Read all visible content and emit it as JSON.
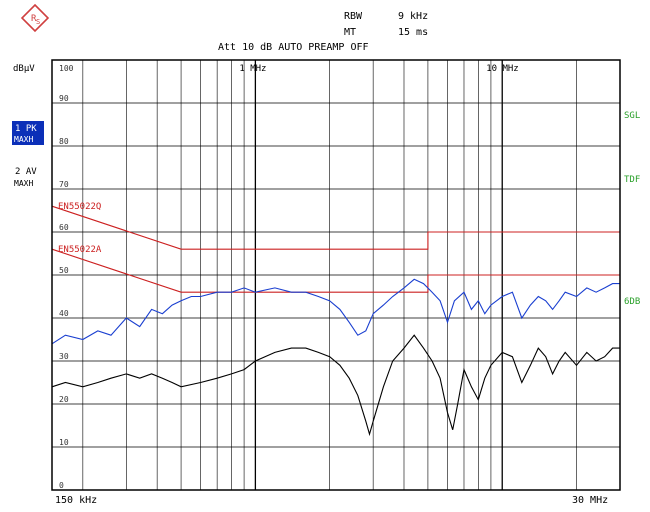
{
  "header": {
    "rbw_label": "RBW",
    "rbw_value": "9 kHz",
    "mt_label": "MT",
    "mt_value": "15 ms",
    "att_line": "Att 10 dB AUTO PREAMP OFF"
  },
  "left_panel": {
    "unit": "dBµV",
    "trace1_line1": "1 PK",
    "trace1_line2": "MAXH",
    "trace2_line1": "2 AV",
    "trace2_line2": "MAXH"
  },
  "right_panel": {
    "sgl": "SGL",
    "tdf": "TDF",
    "sdb": "6DB"
  },
  "colors": {
    "grid": "#000000",
    "frame": "#000000",
    "limit": "#cc2020",
    "trace_pk": "#1a3fd0",
    "trace_av": "#000000",
    "side_green": "#2aa02a",
    "highlight_bg": "#0b2fb8",
    "logo": "#d04040"
  },
  "chart_data": {
    "type": "line",
    "x_scale": "log",
    "xlim_mhz": [
      0.15,
      30
    ],
    "ylim": [
      0,
      100
    ],
    "y_ticks": [
      0,
      10,
      20,
      30,
      40,
      50,
      60,
      70,
      80,
      90,
      100
    ],
    "y_tick_labels": [
      "0",
      "10",
      "20",
      "30",
      "40",
      "50",
      "60",
      "70",
      "80",
      "90",
      "100"
    ],
    "x_tick_labels": [
      {
        "mhz": 1,
        "label": "1 MHz"
      },
      {
        "mhz": 10,
        "label": "10 MHz"
      }
    ],
    "x_start_label": "150 kHz",
    "x_end_label": "30 MHz",
    "limit_lines": [
      {
        "name": "EN55022Q",
        "points": [
          [
            0.15,
            66
          ],
          [
            0.5,
            56
          ],
          [
            5,
            56
          ],
          [
            5,
            60
          ],
          [
            30,
            60
          ]
        ]
      },
      {
        "name": "EN55022A",
        "points": [
          [
            0.15,
            56
          ],
          [
            0.5,
            46
          ],
          [
            5,
            46
          ],
          [
            5,
            50
          ],
          [
            30,
            50
          ]
        ]
      }
    ],
    "series": [
      {
        "name": "1 PK MAXH",
        "points": [
          [
            0.15,
            34
          ],
          [
            0.17,
            36
          ],
          [
            0.2,
            35
          ],
          [
            0.23,
            37
          ],
          [
            0.26,
            36
          ],
          [
            0.3,
            40
          ],
          [
            0.34,
            38
          ],
          [
            0.38,
            42
          ],
          [
            0.42,
            41
          ],
          [
            0.46,
            43
          ],
          [
            0.5,
            44
          ],
          [
            0.55,
            45
          ],
          [
            0.6,
            45
          ],
          [
            0.7,
            46
          ],
          [
            0.8,
            46
          ],
          [
            0.9,
            47
          ],
          [
            1.0,
            46
          ],
          [
            1.2,
            47
          ],
          [
            1.4,
            46
          ],
          [
            1.6,
            46
          ],
          [
            1.8,
            45
          ],
          [
            2.0,
            44
          ],
          [
            2.2,
            42
          ],
          [
            2.4,
            39
          ],
          [
            2.6,
            36
          ],
          [
            2.8,
            37
          ],
          [
            3.0,
            41
          ],
          [
            3.3,
            43
          ],
          [
            3.6,
            45
          ],
          [
            4.0,
            47
          ],
          [
            4.4,
            49
          ],
          [
            4.8,
            48
          ],
          [
            5.2,
            46
          ],
          [
            5.6,
            44
          ],
          [
            6.0,
            39
          ],
          [
            6.4,
            44
          ],
          [
            7.0,
            46
          ],
          [
            7.5,
            42
          ],
          [
            8.0,
            44
          ],
          [
            8.5,
            41
          ],
          [
            9.0,
            43
          ],
          [
            10,
            45
          ],
          [
            11,
            46
          ],
          [
            12,
            40
          ],
          [
            13,
            43
          ],
          [
            14,
            45
          ],
          [
            15,
            44
          ],
          [
            16,
            42
          ],
          [
            17,
            44
          ],
          [
            18,
            46
          ],
          [
            20,
            45
          ],
          [
            22,
            47
          ],
          [
            24,
            46
          ],
          [
            26,
            47
          ],
          [
            28,
            48
          ],
          [
            30,
            48
          ]
        ]
      },
      {
        "name": "2 AV MAXH",
        "points": [
          [
            0.15,
            24
          ],
          [
            0.17,
            25
          ],
          [
            0.2,
            24
          ],
          [
            0.23,
            25
          ],
          [
            0.26,
            26
          ],
          [
            0.3,
            27
          ],
          [
            0.34,
            26
          ],
          [
            0.38,
            27
          ],
          [
            0.42,
            26
          ],
          [
            0.46,
            25
          ],
          [
            0.5,
            24
          ],
          [
            0.6,
            25
          ],
          [
            0.7,
            26
          ],
          [
            0.8,
            27
          ],
          [
            0.9,
            28
          ],
          [
            1.0,
            30
          ],
          [
            1.2,
            32
          ],
          [
            1.4,
            33
          ],
          [
            1.6,
            33
          ],
          [
            1.8,
            32
          ],
          [
            2.0,
            31
          ],
          [
            2.2,
            29
          ],
          [
            2.4,
            26
          ],
          [
            2.6,
            22
          ],
          [
            2.8,
            16
          ],
          [
            2.9,
            13
          ],
          [
            3.0,
            16
          ],
          [
            3.3,
            24
          ],
          [
            3.6,
            30
          ],
          [
            4.0,
            33
          ],
          [
            4.4,
            36
          ],
          [
            4.8,
            33
          ],
          [
            5.2,
            30
          ],
          [
            5.6,
            26
          ],
          [
            6.0,
            18
          ],
          [
            6.3,
            14
          ],
          [
            6.6,
            20
          ],
          [
            7.0,
            28
          ],
          [
            7.5,
            24
          ],
          [
            8.0,
            21
          ],
          [
            8.5,
            26
          ],
          [
            9.0,
            29
          ],
          [
            10,
            32
          ],
          [
            11,
            31
          ],
          [
            12,
            25
          ],
          [
            13,
            29
          ],
          [
            14,
            33
          ],
          [
            15,
            31
          ],
          [
            16,
            27
          ],
          [
            17,
            30
          ],
          [
            18,
            32
          ],
          [
            20,
            29
          ],
          [
            22,
            32
          ],
          [
            24,
            30
          ],
          [
            26,
            31
          ],
          [
            28,
            33
          ],
          [
            30,
            33
          ]
        ]
      }
    ]
  }
}
